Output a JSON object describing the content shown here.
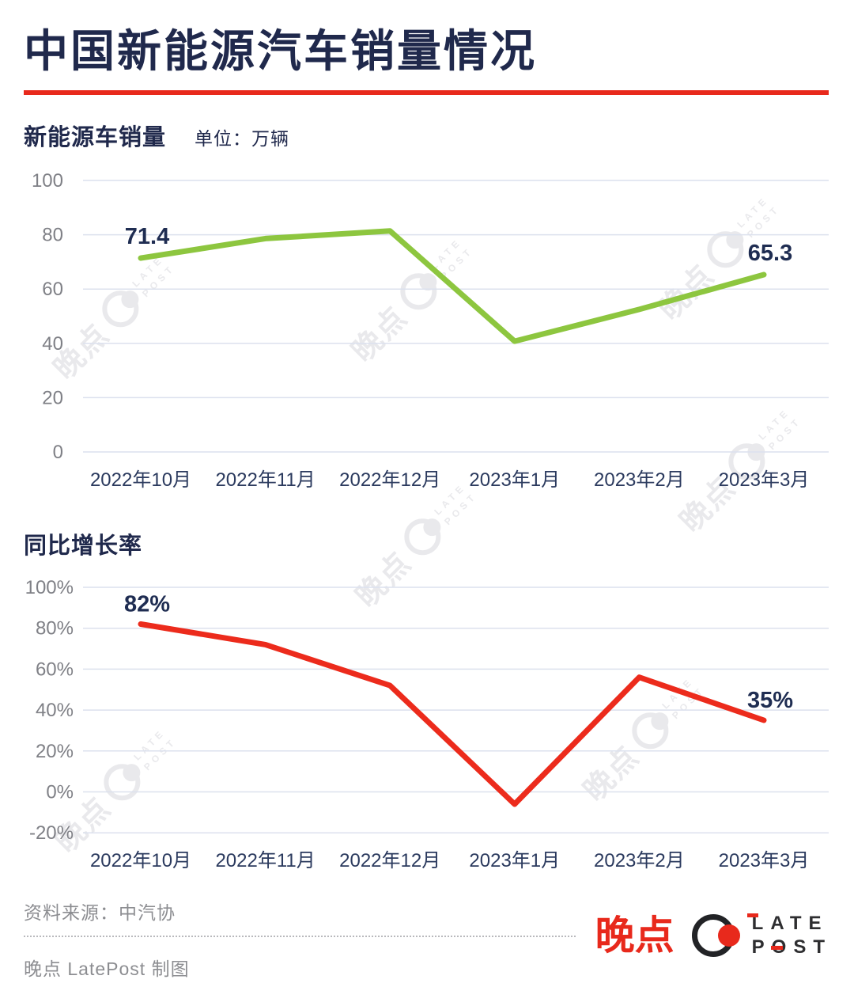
{
  "header": {
    "title": "中国新能源汽车销量情况"
  },
  "colors": {
    "accent_red": "#E8291C",
    "line_green": "#8DC63F",
    "line_red": "#EC2B1C",
    "navy_title": "#20294C",
    "navy_label": "#2B3A5E",
    "axis_gray": "#7F8086",
    "grid": "#DCE1EE",
    "footer_gray": "#8C8D91",
    "logo_dark": "#2E2E30"
  },
  "sections": [
    {
      "label": "新能源车销量",
      "unit": "单位：万辆"
    },
    {
      "label": "同比增长率",
      "unit": ""
    }
  ],
  "chart_data": [
    {
      "type": "line",
      "title": "新能源车销量",
      "ylabel": "万辆",
      "categories": [
        "2022年10月",
        "2022年11月",
        "2022年12月",
        "2023年1月",
        "2023年2月",
        "2023年3月"
      ],
      "values": [
        71.4,
        78.6,
        81.4,
        40.8,
        52.5,
        65.3
      ],
      "point_labels": [
        {
          "index": 0,
          "text": "71.4"
        },
        {
          "index": 5,
          "text": "65.3"
        }
      ],
      "y_tick_values": [
        100,
        80,
        60,
        40,
        20,
        0
      ],
      "y_tick_labels": [
        "100",
        "80",
        "60",
        "40",
        "20",
        "0"
      ],
      "ylim": [
        0,
        100
      ],
      "grid": true,
      "legend": false,
      "line_color": "#8DC63F"
    },
    {
      "type": "line",
      "title": "同比增长率",
      "ylabel": "%",
      "categories": [
        "2022年10月",
        "2022年11月",
        "2022年12月",
        "2023年1月",
        "2023年2月",
        "2023年3月"
      ],
      "values": [
        82,
        72,
        52,
        -6,
        56,
        35
      ],
      "point_labels": [
        {
          "index": 0,
          "text": "82%"
        },
        {
          "index": 5,
          "text": "35%"
        }
      ],
      "y_tick_values": [
        100,
        80,
        60,
        40,
        20,
        0,
        -20
      ],
      "y_tick_labels": [
        "100%",
        "80%",
        "60%",
        "40%",
        "20%",
        "0%",
        "-20%"
      ],
      "ylim": [
        -20,
        100
      ],
      "grid": true,
      "legend": false,
      "line_color": "#EC2B1C"
    }
  ],
  "watermark": {
    "cn": "晚点",
    "late": "LATE",
    "post": "POST"
  },
  "footer": {
    "source": "资料来源：中汽协",
    "credit": "晚点 LatePost 制图"
  },
  "logo": {
    "cn": "晚点",
    "late": "LATE",
    "post": "POST"
  }
}
